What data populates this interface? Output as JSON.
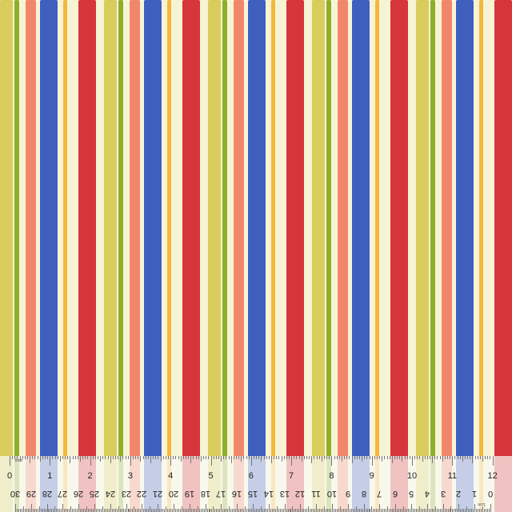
{
  "colors": {
    "background": "#f7f4d6",
    "yellow": "#d8cc5c",
    "green": "#8fae2c",
    "salmon": "#f0876a",
    "blue": "#3f5fbf",
    "orange": "#f5b83a",
    "red": "#d6353a"
  },
  "stripe_pattern": [
    "yellow",
    "green",
    "salmon",
    "blue",
    "orange",
    "red"
  ],
  "ruler": {
    "inch_unit": "inch",
    "cm_unit": "1cm",
    "inch_labels": [
      "0",
      "1",
      "2",
      "3",
      "4",
      "5",
      "6",
      "7",
      "8",
      "9",
      "10",
      "11",
      "12"
    ],
    "cm_labels": [
      "30",
      "29",
      "28",
      "27",
      "26",
      "25",
      "24",
      "23",
      "22",
      "21",
      "20",
      "19",
      "18",
      "17",
      "16",
      "15",
      "14",
      "13",
      "12",
      "11",
      "10",
      "9",
      "8",
      "7",
      "6",
      "5",
      "4",
      "3",
      "2",
      "1",
      "0"
    ]
  }
}
